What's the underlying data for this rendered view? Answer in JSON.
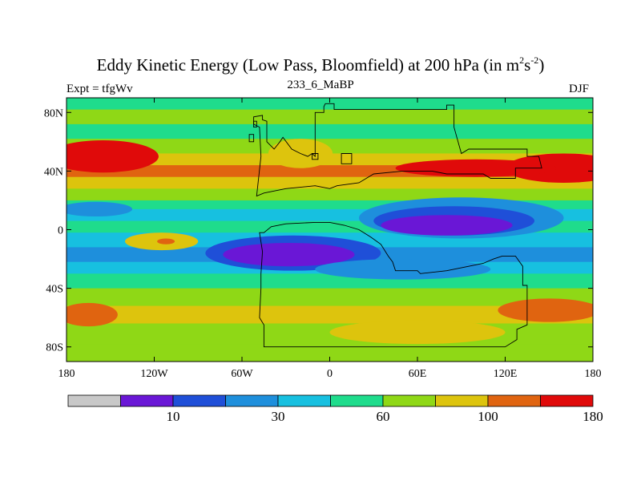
{
  "title": {
    "main": "Eddy Kinetic Energy (Low Pass, Bloomfield) at 200 hPa (in m",
    "sup1": "2",
    "mid": "s",
    "sup2": "-2",
    "end": ")"
  },
  "experiment_label": "Expt = tfgWv",
  "period_label": "233_6_MaBP",
  "season_label": "DJF",
  "chart_data": {
    "type": "heatmap",
    "title": "Eddy Kinetic Energy (Low Pass, Bloomfield) at 200 hPa (in m2s-2)",
    "x_ticks": [
      {
        "value": -180,
        "label": "180"
      },
      {
        "value": -120,
        "label": "120W"
      },
      {
        "value": -60,
        "label": "60W"
      },
      {
        "value": 0,
        "label": "0"
      },
      {
        "value": 60,
        "label": "60E"
      },
      {
        "value": 120,
        "label": "120E"
      },
      {
        "value": 180,
        "label": "180"
      }
    ],
    "y_ticks": [
      {
        "value": 80,
        "label": "80N"
      },
      {
        "value": 40,
        "label": "40N"
      },
      {
        "value": 0,
        "label": "0"
      },
      {
        "value": -40,
        "label": "40S"
      },
      {
        "value": -80,
        "label": "80S"
      }
    ],
    "xlim": [
      -180,
      180
    ],
    "ylim": [
      -90,
      90
    ],
    "colorbar": {
      "colors": [
        "#c8c8c8",
        "#6a17d6",
        "#1f4fd8",
        "#1e8fdc",
        "#17c0e0",
        "#1fdc8c",
        "#8fd816",
        "#ddc40d",
        "#e06410",
        "#e00a0a"
      ],
      "labels": [
        {
          "boundary": 2,
          "text": "10"
        },
        {
          "boundary": 4,
          "text": "30"
        },
        {
          "boundary": 6,
          "text": "60"
        },
        {
          "boundary": 8,
          "text": "100"
        },
        {
          "boundary": 10,
          "text": "180"
        }
      ]
    },
    "bands": [
      {
        "lat_top": 90,
        "lat_bot": 82,
        "color": "#1fdc8c"
      },
      {
        "lat_top": 82,
        "lat_bot": 72,
        "color": "#8fd816"
      },
      {
        "lat_top": 72,
        "lat_bot": 62,
        "color": "#1fdc8c"
      },
      {
        "lat_top": 62,
        "lat_bot": 52,
        "color": "#8fd816"
      },
      {
        "lat_top": 52,
        "lat_bot": 44,
        "color": "#ddc40d"
      },
      {
        "lat_top": 44,
        "lat_bot": 36,
        "color": "#e06410"
      },
      {
        "lat_top": 36,
        "lat_bot": 28,
        "color": "#ddc40d"
      },
      {
        "lat_top": 28,
        "lat_bot": 20,
        "color": "#8fd816"
      },
      {
        "lat_top": 20,
        "lat_bot": 14,
        "color": "#1fdc8c"
      },
      {
        "lat_top": 14,
        "lat_bot": 6,
        "color": "#17c0e0"
      },
      {
        "lat_top": 6,
        "lat_bot": -2,
        "color": "#1fdc8c"
      },
      {
        "lat_top": -2,
        "lat_bot": -12,
        "color": "#17c0e0"
      },
      {
        "lat_top": -12,
        "lat_bot": -22,
        "color": "#1e8fdc"
      },
      {
        "lat_top": -22,
        "lat_bot": -30,
        "color": "#17c0e0"
      },
      {
        "lat_top": -30,
        "lat_bot": -40,
        "color": "#1fdc8c"
      },
      {
        "lat_top": -40,
        "lat_bot": -52,
        "color": "#8fd816"
      },
      {
        "lat_top": -52,
        "lat_bot": -64,
        "color": "#ddc40d"
      },
      {
        "lat_top": -64,
        "lat_bot": -78,
        "color": "#8fd816"
      },
      {
        "lat_top": -78,
        "lat_bot": -90,
        "color": "#8fd816"
      }
    ],
    "patches": [
      {
        "lon": -155,
        "lat": 50,
        "rx": 38,
        "ry": 11,
        "color": "#e00a0a"
      },
      {
        "lon": 160,
        "lat": 42,
        "rx": 40,
        "ry": 10,
        "color": "#e00a0a"
      },
      {
        "lon": 100,
        "lat": 42,
        "rx": 55,
        "ry": 6,
        "color": "#e00a0a"
      },
      {
        "lon": -20,
        "lat": 52,
        "rx": 22,
        "ry": 10,
        "color": "#ddc40d"
      },
      {
        "lon": 90,
        "lat": 8,
        "rx": 70,
        "ry": 14,
        "color": "#1e8fdc"
      },
      {
        "lon": 85,
        "lat": 6,
        "rx": 55,
        "ry": 10,
        "color": "#1f4fd8"
      },
      {
        "lon": 80,
        "lat": 3,
        "rx": 45,
        "ry": 7,
        "color": "#6a17d6"
      },
      {
        "lon": -25,
        "lat": -16,
        "rx": 60,
        "ry": 12,
        "color": "#1f4fd8"
      },
      {
        "lon": -28,
        "lat": -17,
        "rx": 45,
        "ry": 8,
        "color": "#6a17d6"
      },
      {
        "lon": -160,
        "lat": 14,
        "rx": 25,
        "ry": 5,
        "color": "#1e8fdc"
      },
      {
        "lon": -115,
        "lat": -8,
        "rx": 25,
        "ry": 6,
        "color": "#ddc40d"
      },
      {
        "lon": -112,
        "lat": -8,
        "rx": 6,
        "ry": 2,
        "color": "#e06410"
      },
      {
        "lon": -165,
        "lat": -58,
        "rx": 20,
        "ry": 8,
        "color": "#e06410"
      },
      {
        "lon": 150,
        "lat": -55,
        "rx": 35,
        "ry": 8,
        "color": "#e06410"
      },
      {
        "lon": 60,
        "lat": -70,
        "rx": 60,
        "ry": 8,
        "color": "#ddc40d"
      },
      {
        "lon": 50,
        "lat": -27,
        "rx": 60,
        "ry": 7,
        "color": "#1e8fdc"
      }
    ],
    "continents": [
      {
        "name": "laurasia",
        "points": [
          [
            -50,
            23
          ],
          [
            -47,
            50
          ],
          [
            -48,
            70
          ],
          [
            -52,
            72
          ],
          [
            -52,
            77
          ],
          [
            -46,
            78
          ],
          [
            -46,
            75
          ],
          [
            -43,
            74
          ],
          [
            -43,
            60
          ],
          [
            -38,
            55
          ],
          [
            -34,
            60
          ],
          [
            -32,
            63
          ],
          [
            -26,
            55
          ],
          [
            -20,
            52
          ],
          [
            -15,
            50
          ],
          [
            -12,
            52
          ],
          [
            -10,
            50
          ],
          [
            -10,
            80
          ],
          [
            -4,
            80
          ],
          [
            -4,
            84
          ],
          [
            -3,
            86
          ],
          [
            3,
            86
          ],
          [
            3,
            82
          ],
          [
            80,
            82
          ],
          [
            80,
            85
          ],
          [
            85,
            85
          ],
          [
            85,
            70
          ],
          [
            90,
            52
          ],
          [
            95,
            55
          ],
          [
            135,
            55
          ],
          [
            135,
            50
          ],
          [
            143,
            50
          ],
          [
            145,
            42
          ],
          [
            127,
            42
          ],
          [
            127,
            35
          ],
          [
            110,
            35
          ],
          [
            105,
            38
          ],
          [
            80,
            38
          ],
          [
            70,
            40
          ],
          [
            50,
            40
          ],
          [
            30,
            38
          ],
          [
            20,
            32
          ],
          [
            5,
            30
          ],
          [
            0,
            28
          ],
          [
            -10,
            30
          ],
          [
            -30,
            28
          ],
          [
            -45,
            25
          ],
          [
            -50,
            23
          ]
        ]
      },
      {
        "name": "gondwana",
        "points": [
          [
            -48,
            -2
          ],
          [
            -45,
            -2
          ],
          [
            -40,
            2
          ],
          [
            -30,
            4
          ],
          [
            -10,
            5
          ],
          [
            0,
            5
          ],
          [
            10,
            3
          ],
          [
            20,
            0
          ],
          [
            28,
            -5
          ],
          [
            35,
            -10
          ],
          [
            40,
            -18
          ],
          [
            43,
            -22
          ],
          [
            45,
            -28
          ],
          [
            60,
            -28
          ],
          [
            62,
            -30
          ],
          [
            80,
            -28
          ],
          [
            95,
            -25
          ],
          [
            105,
            -23
          ],
          [
            112,
            -20
          ],
          [
            118,
            -18
          ],
          [
            127,
            -18
          ],
          [
            132,
            -25
          ],
          [
            132,
            -38
          ],
          [
            135,
            -38
          ],
          [
            135,
            -50
          ],
          [
            135,
            -65
          ],
          [
            128,
            -68
          ],
          [
            128,
            -75
          ],
          [
            120,
            -80
          ],
          [
            -45,
            -80
          ],
          [
            -45,
            -65
          ],
          [
            -48,
            -60
          ],
          [
            -47,
            -40
          ],
          [
            -47,
            -30
          ],
          [
            -46,
            -15
          ],
          [
            -48,
            -2
          ]
        ]
      }
    ],
    "islands": [
      {
        "name": "north-island-1",
        "points": [
          [
            -52,
            74
          ],
          [
            -52,
            70
          ],
          [
            -50,
            70
          ],
          [
            -50,
            74
          ]
        ]
      },
      {
        "name": "north-island-2",
        "points": [
          [
            -12,
            52
          ],
          [
            -8,
            52
          ],
          [
            -8,
            48
          ],
          [
            -12,
            48
          ]
        ]
      },
      {
        "name": "north-island-3",
        "points": [
          [
            8,
            52
          ],
          [
            15,
            52
          ],
          [
            15,
            45
          ],
          [
            8,
            45
          ]
        ]
      },
      {
        "name": "north-island-4",
        "points": [
          [
            -55,
            65
          ],
          [
            -52,
            65
          ],
          [
            -52,
            60
          ],
          [
            -55,
            60
          ]
        ]
      }
    ]
  }
}
